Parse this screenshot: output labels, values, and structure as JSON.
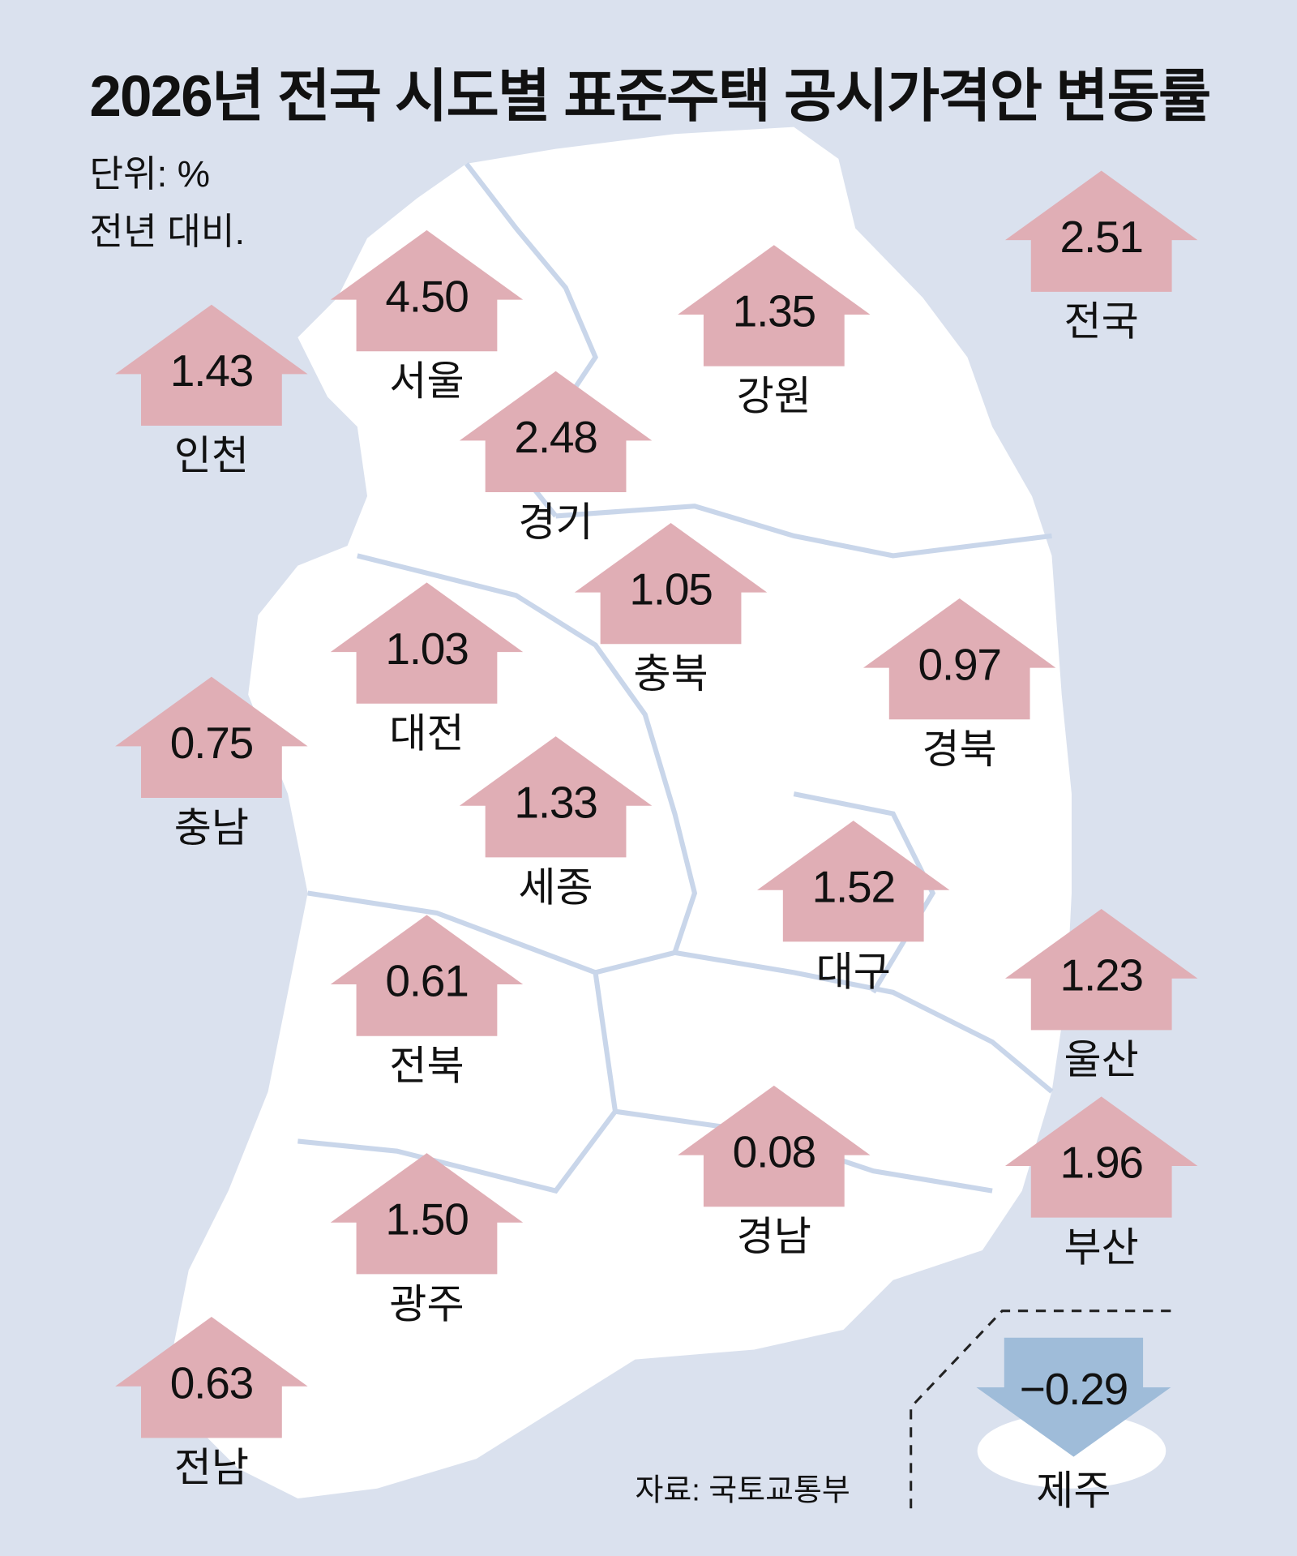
{
  "title": "2026년 전국 시도별 표준주택 공시가격안 변동률",
  "unit": "단위: %",
  "note": "전년 대비.",
  "source": "자료: 국토교통부",
  "colors": {
    "background": "#dae1ee",
    "land": "#ffffff",
    "increase": "#e0aeb5",
    "decrease": "#9fbcd9",
    "border": "#c9d6ea"
  },
  "regions": [
    {
      "name": "전국",
      "value": "2.51",
      "direction": "up"
    },
    {
      "name": "서울",
      "value": "4.50",
      "direction": "up"
    },
    {
      "name": "인천",
      "value": "1.43",
      "direction": "up"
    },
    {
      "name": "강원",
      "value": "1.35",
      "direction": "up"
    },
    {
      "name": "경기",
      "value": "2.48",
      "direction": "up"
    },
    {
      "name": "충북",
      "value": "1.05",
      "direction": "up"
    },
    {
      "name": "대전",
      "value": "1.03",
      "direction": "up"
    },
    {
      "name": "경북",
      "value": "0.97",
      "direction": "up"
    },
    {
      "name": "충남",
      "value": "0.75",
      "direction": "up"
    },
    {
      "name": "세종",
      "value": "1.33",
      "direction": "up"
    },
    {
      "name": "대구",
      "value": "1.52",
      "direction": "up"
    },
    {
      "name": "전북",
      "value": "0.61",
      "direction": "up"
    },
    {
      "name": "울산",
      "value": "1.23",
      "direction": "up"
    },
    {
      "name": "경남",
      "value": "0.08",
      "direction": "up"
    },
    {
      "name": "부산",
      "value": "1.96",
      "direction": "up"
    },
    {
      "name": "광주",
      "value": "1.50",
      "direction": "up"
    },
    {
      "name": "전남",
      "value": "0.63",
      "direction": "up"
    },
    {
      "name": "제주",
      "value": "−0.29",
      "direction": "down"
    }
  ]
}
